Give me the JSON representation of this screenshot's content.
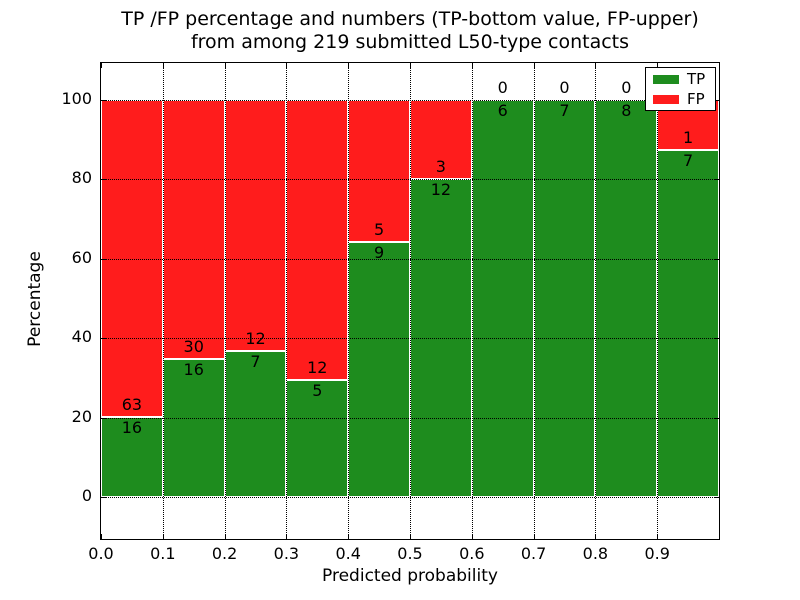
{
  "figure": {
    "title_line1": "TP /FP percentage and numbers (TP-bottom value, FP-upper)",
    "title_line2": "from among 219 submitted L50-type contacts"
  },
  "chart_data": {
    "type": "bar",
    "stacked": true,
    "orientation": "vertical",
    "title": "TP /FP percentage and numbers (TP-bottom value, FP-upper) from among 219 submitted L50-type contacts",
    "xlabel": "Predicted probability",
    "ylabel": "Percentage",
    "total_submitted_contacts": 219,
    "bin_width": 0.1,
    "x_tick_labels": [
      "0.0",
      "0.1",
      "0.2",
      "0.3",
      "0.4",
      "0.5",
      "0.6",
      "0.7",
      "0.8",
      "0.9"
    ],
    "y_ticks": [
      0,
      20,
      40,
      60,
      80,
      100
    ],
    "ylim": [
      -10.8,
      109.6
    ],
    "xlim": [
      0.0,
      1.0
    ],
    "grid": {
      "visible": true,
      "style": "dotted",
      "color": "#000000"
    },
    "bar_edge_color": "#ffffff",
    "series": [
      {
        "name": "TP",
        "color": "#1e8c1e",
        "counts": [
          16,
          16,
          7,
          5,
          9,
          12,
          6,
          7,
          8,
          7
        ]
      },
      {
        "name": "FP",
        "color": "#ff1c1c",
        "counts": [
          63,
          30,
          12,
          12,
          5,
          3,
          0,
          0,
          0,
          1
        ]
      }
    ],
    "tp_percentages": [
      20.3,
      34.8,
      36.8,
      29.4,
      64.3,
      80.0,
      100.0,
      100.0,
      100.0,
      87.5
    ],
    "legend": {
      "position": "upper right",
      "entries": [
        "TP",
        "FP"
      ]
    }
  }
}
